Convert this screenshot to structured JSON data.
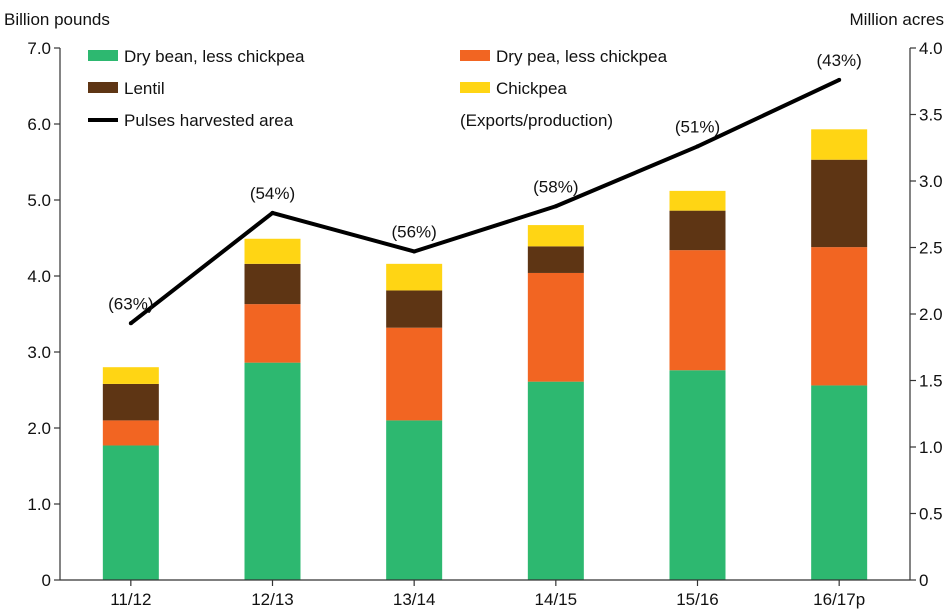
{
  "chart_data": {
    "type": "bar",
    "stacked": true,
    "left_axis_title": "Billion pounds",
    "right_axis_title": "Million acres",
    "categories": [
      "11/12",
      "12/13",
      "13/14",
      "14/15",
      "15/16",
      "16/17p"
    ],
    "left_ylim": [
      0,
      7
    ],
    "left_ticks": [
      "0",
      "1.0",
      "2.0",
      "3.0",
      "4.0",
      "5.0",
      "6.0",
      "7.0"
    ],
    "right_ylim": [
      0,
      4
    ],
    "right_ticks": [
      "0",
      "0.5",
      "1.0",
      "1.5",
      "2.0",
      "2.5",
      "3.0",
      "3.5",
      "4.0"
    ],
    "series": [
      {
        "name": "Dry bean, less chickpea",
        "color": "#2db870",
        "values": [
          1.77,
          2.86,
          2.1,
          2.61,
          2.76,
          2.56
        ]
      },
      {
        "name": "Dry pea, less chickpea",
        "color": "#f26522",
        "values": [
          0.33,
          0.77,
          1.22,
          1.43,
          1.58,
          1.82
        ]
      },
      {
        "name": "Lentil",
        "color": "#5e3514",
        "values": [
          0.48,
          0.53,
          0.49,
          0.35,
          0.52,
          1.15
        ]
      },
      {
        "name": "Chickpea",
        "color": "#ffd514",
        "values": [
          0.22,
          0.33,
          0.35,
          0.28,
          0.26,
          0.4
        ]
      }
    ],
    "line": {
      "name": "Pulses harvested area",
      "color": "#000000",
      "axis": "right",
      "values": [
        1.93,
        2.76,
        2.47,
        2.81,
        3.26,
        3.76
      ]
    },
    "annotations_label": "(Exports/production)",
    "annotations": [
      "(63%)",
      "(54%)",
      "(56%)",
      "(58%)",
      "(51%)",
      "(43%)"
    ],
    "legend_position": "top-left",
    "grid": false
  }
}
